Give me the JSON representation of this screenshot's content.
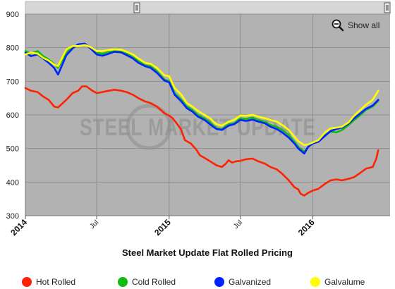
{
  "chart_data": {
    "type": "line",
    "title": "Steel Market Update Flat Rolled Pricing",
    "watermark": "STEEL MARKET UPDATE",
    "controls": {
      "reset_zoom_label": "Show all",
      "zoom_icon": "magnifier-zoom-out-icon"
    },
    "y_axis": {
      "min": 300,
      "max": 900,
      "ticks": [
        300,
        400,
        500,
        600,
        700,
        800,
        900
      ]
    },
    "x_axis": {
      "min": "2014-01-01",
      "max": "2016-07-15",
      "ticks": [
        {
          "date": "2014-01-01",
          "label": "2014",
          "major": true
        },
        {
          "date": "2014-07-01",
          "label": "Jul",
          "major": false
        },
        {
          "date": "2015-01-01",
          "label": "2015",
          "major": true
        },
        {
          "date": "2015-07-01",
          "label": "Jul",
          "major": false
        },
        {
          "date": "2016-01-01",
          "label": "2016",
          "major": true
        }
      ]
    },
    "grid": true,
    "legend_position": "bottom",
    "plot_background": "#b2b2b2",
    "series": [
      {
        "name": "Hot Rolled",
        "color": "#ff2200",
        "points": [
          [
            "2014-01-01",
            680
          ],
          [
            "2014-01-15",
            672
          ],
          [
            "2014-02-01",
            668
          ],
          [
            "2014-02-15",
            655
          ],
          [
            "2014-03-01",
            645
          ],
          [
            "2014-03-15",
            625
          ],
          [
            "2014-03-25",
            622
          ],
          [
            "2014-04-15",
            645
          ],
          [
            "2014-05-01",
            665
          ],
          [
            "2014-05-15",
            672
          ],
          [
            "2014-05-25",
            685
          ],
          [
            "2014-06-05",
            685
          ],
          [
            "2014-06-20",
            672
          ],
          [
            "2014-07-01",
            665
          ],
          [
            "2014-07-15",
            668
          ],
          [
            "2014-08-01",
            672
          ],
          [
            "2014-08-15",
            675
          ],
          [
            "2014-09-01",
            672
          ],
          [
            "2014-09-15",
            668
          ],
          [
            "2014-10-01",
            660
          ],
          [
            "2014-10-15",
            650
          ],
          [
            "2014-11-01",
            640
          ],
          [
            "2014-11-15",
            635
          ],
          [
            "2014-12-01",
            625
          ],
          [
            "2014-12-20",
            605
          ],
          [
            "2015-01-01",
            598
          ],
          [
            "2015-01-10",
            590
          ],
          [
            "2015-01-20",
            575
          ],
          [
            "2015-02-01",
            555
          ],
          [
            "2015-02-10",
            525
          ],
          [
            "2015-02-25",
            515
          ],
          [
            "2015-03-10",
            498
          ],
          [
            "2015-03-20",
            480
          ],
          [
            "2015-04-01",
            472
          ],
          [
            "2015-04-15",
            462
          ],
          [
            "2015-05-01",
            450
          ],
          [
            "2015-05-15",
            445
          ],
          [
            "2015-05-25",
            455
          ],
          [
            "2015-06-01",
            465
          ],
          [
            "2015-06-10",
            458
          ],
          [
            "2015-06-20",
            462
          ],
          [
            "2015-07-01",
            463
          ],
          [
            "2015-07-15",
            468
          ],
          [
            "2015-08-01",
            470
          ],
          [
            "2015-08-15",
            462
          ],
          [
            "2015-09-01",
            455
          ],
          [
            "2015-09-15",
            445
          ],
          [
            "2015-10-01",
            438
          ],
          [
            "2015-10-15",
            425
          ],
          [
            "2015-11-01",
            405
          ],
          [
            "2015-11-15",
            385
          ],
          [
            "2015-11-25",
            378
          ],
          [
            "2015-12-01",
            365
          ],
          [
            "2015-12-10",
            360
          ],
          [
            "2015-12-20",
            368
          ],
          [
            "2016-01-01",
            375
          ],
          [
            "2016-01-15",
            380
          ],
          [
            "2016-02-01",
            395
          ],
          [
            "2016-02-15",
            405
          ],
          [
            "2016-03-01",
            408
          ],
          [
            "2016-03-15",
            405
          ],
          [
            "2016-04-01",
            410
          ],
          [
            "2016-04-15",
            415
          ],
          [
            "2016-05-01",
            428
          ],
          [
            "2016-05-15",
            440
          ],
          [
            "2016-06-01",
            445
          ],
          [
            "2016-06-10",
            470
          ],
          [
            "2016-06-15",
            495
          ]
        ]
      },
      {
        "name": "Cold Rolled",
        "color": "#11bb11",
        "points": [
          [
            "2014-01-01",
            790
          ],
          [
            "2014-01-15",
            782
          ],
          [
            "2014-02-01",
            790
          ],
          [
            "2014-02-15",
            775
          ],
          [
            "2014-03-01",
            765
          ],
          [
            "2014-03-15",
            752
          ],
          [
            "2014-03-25",
            740
          ],
          [
            "2014-04-15",
            785
          ],
          [
            "2014-05-01",
            802
          ],
          [
            "2014-05-15",
            808
          ],
          [
            "2014-06-01",
            810
          ],
          [
            "2014-06-15",
            800
          ],
          [
            "2014-07-01",
            785
          ],
          [
            "2014-07-15",
            782
          ],
          [
            "2014-08-01",
            788
          ],
          [
            "2014-08-15",
            790
          ],
          [
            "2014-09-01",
            788
          ],
          [
            "2014-09-15",
            782
          ],
          [
            "2014-10-01",
            772
          ],
          [
            "2014-10-15",
            760
          ],
          [
            "2014-11-01",
            748
          ],
          [
            "2014-11-15",
            745
          ],
          [
            "2014-12-01",
            730
          ],
          [
            "2014-12-20",
            705
          ],
          [
            "2015-01-01",
            700
          ],
          [
            "2015-01-15",
            665
          ],
          [
            "2015-02-01",
            645
          ],
          [
            "2015-02-15",
            625
          ],
          [
            "2015-03-01",
            615
          ],
          [
            "2015-03-15",
            600
          ],
          [
            "2015-04-01",
            590
          ],
          [
            "2015-04-15",
            578
          ],
          [
            "2015-05-01",
            560
          ],
          [
            "2015-05-15",
            558
          ],
          [
            "2015-06-01",
            572
          ],
          [
            "2015-06-15",
            575
          ],
          [
            "2015-07-01",
            590
          ],
          [
            "2015-07-15",
            588
          ],
          [
            "2015-08-01",
            592
          ],
          [
            "2015-08-15",
            585
          ],
          [
            "2015-09-01",
            580
          ],
          [
            "2015-09-15",
            570
          ],
          [
            "2015-10-01",
            565
          ],
          [
            "2015-10-15",
            555
          ],
          [
            "2015-11-01",
            540
          ],
          [
            "2015-11-15",
            520
          ],
          [
            "2015-11-25",
            505
          ],
          [
            "2015-12-10",
            490
          ],
          [
            "2015-12-20",
            505
          ],
          [
            "2016-01-01",
            515
          ],
          [
            "2016-01-15",
            520
          ],
          [
            "2016-02-01",
            540
          ],
          [
            "2016-02-15",
            550
          ],
          [
            "2016-03-01",
            548
          ],
          [
            "2016-03-15",
            555
          ],
          [
            "2016-04-01",
            570
          ],
          [
            "2016-04-15",
            585
          ],
          [
            "2016-05-01",
            600
          ],
          [
            "2016-05-15",
            615
          ],
          [
            "2016-06-01",
            625
          ],
          [
            "2016-06-15",
            642
          ]
        ]
      },
      {
        "name": "Galvanized",
        "color": "#0022ff",
        "points": [
          [
            "2014-01-01",
            785
          ],
          [
            "2014-01-15",
            775
          ],
          [
            "2014-02-01",
            780
          ],
          [
            "2014-02-15",
            768
          ],
          [
            "2014-03-01",
            755
          ],
          [
            "2014-03-15",
            740
          ],
          [
            "2014-03-25",
            720
          ],
          [
            "2014-04-15",
            778
          ],
          [
            "2014-05-01",
            798
          ],
          [
            "2014-05-15",
            810
          ],
          [
            "2014-06-01",
            812
          ],
          [
            "2014-06-15",
            798
          ],
          [
            "2014-07-01",
            780
          ],
          [
            "2014-07-15",
            776
          ],
          [
            "2014-08-01",
            782
          ],
          [
            "2014-08-15",
            788
          ],
          [
            "2014-09-01",
            786
          ],
          [
            "2014-09-15",
            778
          ],
          [
            "2014-10-01",
            768
          ],
          [
            "2014-10-15",
            755
          ],
          [
            "2014-11-01",
            745
          ],
          [
            "2014-11-15",
            740
          ],
          [
            "2014-12-01",
            725
          ],
          [
            "2014-12-20",
            702
          ],
          [
            "2015-01-01",
            697
          ],
          [
            "2015-01-15",
            660
          ],
          [
            "2015-02-01",
            640
          ],
          [
            "2015-02-15",
            620
          ],
          [
            "2015-03-01",
            610
          ],
          [
            "2015-03-15",
            595
          ],
          [
            "2015-04-01",
            585
          ],
          [
            "2015-04-15",
            572
          ],
          [
            "2015-05-01",
            558
          ],
          [
            "2015-05-15",
            555
          ],
          [
            "2015-06-01",
            568
          ],
          [
            "2015-06-15",
            572
          ],
          [
            "2015-07-01",
            585
          ],
          [
            "2015-07-15",
            582
          ],
          [
            "2015-08-01",
            586
          ],
          [
            "2015-08-15",
            580
          ],
          [
            "2015-09-01",
            575
          ],
          [
            "2015-09-15",
            565
          ],
          [
            "2015-10-01",
            558
          ],
          [
            "2015-10-15",
            548
          ],
          [
            "2015-11-01",
            532
          ],
          [
            "2015-11-15",
            515
          ],
          [
            "2015-11-25",
            500
          ],
          [
            "2015-12-10",
            485
          ],
          [
            "2015-12-20",
            505
          ],
          [
            "2016-01-01",
            515
          ],
          [
            "2016-01-15",
            520
          ],
          [
            "2016-02-01",
            538
          ],
          [
            "2016-02-15",
            552
          ],
          [
            "2016-03-01",
            558
          ],
          [
            "2016-03-15",
            562
          ],
          [
            "2016-04-01",
            575
          ],
          [
            "2016-04-15",
            590
          ],
          [
            "2016-05-01",
            605
          ],
          [
            "2016-05-15",
            618
          ],
          [
            "2016-06-01",
            628
          ],
          [
            "2016-06-15",
            645
          ]
        ]
      },
      {
        "name": "Galvalume",
        "color": "#ffff00",
        "points": [
          [
            "2014-01-01",
            780
          ],
          [
            "2014-01-15",
            785
          ],
          [
            "2014-02-01",
            782
          ],
          [
            "2014-02-15",
            770
          ],
          [
            "2014-03-01",
            762
          ],
          [
            "2014-03-15",
            750
          ],
          [
            "2014-03-25",
            745
          ],
          [
            "2014-04-15",
            795
          ],
          [
            "2014-05-01",
            805
          ],
          [
            "2014-05-15",
            805
          ],
          [
            "2014-06-01",
            808
          ],
          [
            "2014-06-15",
            802
          ],
          [
            "2014-07-01",
            790
          ],
          [
            "2014-07-15",
            790
          ],
          [
            "2014-08-01",
            793
          ],
          [
            "2014-08-15",
            795
          ],
          [
            "2014-09-01",
            794
          ],
          [
            "2014-09-15",
            788
          ],
          [
            "2014-10-01",
            780
          ],
          [
            "2014-10-15",
            768
          ],
          [
            "2014-11-01",
            755
          ],
          [
            "2014-11-15",
            752
          ],
          [
            "2014-12-01",
            740
          ],
          [
            "2014-12-20",
            718
          ],
          [
            "2015-01-01",
            715
          ],
          [
            "2015-01-15",
            680
          ],
          [
            "2015-02-01",
            660
          ],
          [
            "2015-02-15",
            635
          ],
          [
            "2015-03-01",
            625
          ],
          [
            "2015-03-15",
            612
          ],
          [
            "2015-04-01",
            600
          ],
          [
            "2015-04-15",
            590
          ],
          [
            "2015-05-01",
            572
          ],
          [
            "2015-05-15",
            568
          ],
          [
            "2015-06-01",
            580
          ],
          [
            "2015-06-15",
            585
          ],
          [
            "2015-07-01",
            598
          ],
          [
            "2015-07-15",
            597
          ],
          [
            "2015-08-01",
            600
          ],
          [
            "2015-08-15",
            595
          ],
          [
            "2015-09-01",
            590
          ],
          [
            "2015-09-15",
            585
          ],
          [
            "2015-10-01",
            580
          ],
          [
            "2015-10-15",
            570
          ],
          [
            "2015-11-01",
            555
          ],
          [
            "2015-11-15",
            535
          ],
          [
            "2015-11-25",
            522
          ],
          [
            "2015-12-10",
            510
          ],
          [
            "2015-12-20",
            512
          ],
          [
            "2016-01-01",
            518
          ],
          [
            "2016-01-15",
            525
          ],
          [
            "2016-02-01",
            548
          ],
          [
            "2016-02-15",
            560
          ],
          [
            "2016-03-01",
            562
          ],
          [
            "2016-03-15",
            565
          ],
          [
            "2016-04-01",
            578
          ],
          [
            "2016-04-15",
            598
          ],
          [
            "2016-05-01",
            615
          ],
          [
            "2016-05-15",
            630
          ],
          [
            "2016-06-01",
            645
          ],
          [
            "2016-06-15",
            672
          ]
        ]
      }
    ]
  }
}
